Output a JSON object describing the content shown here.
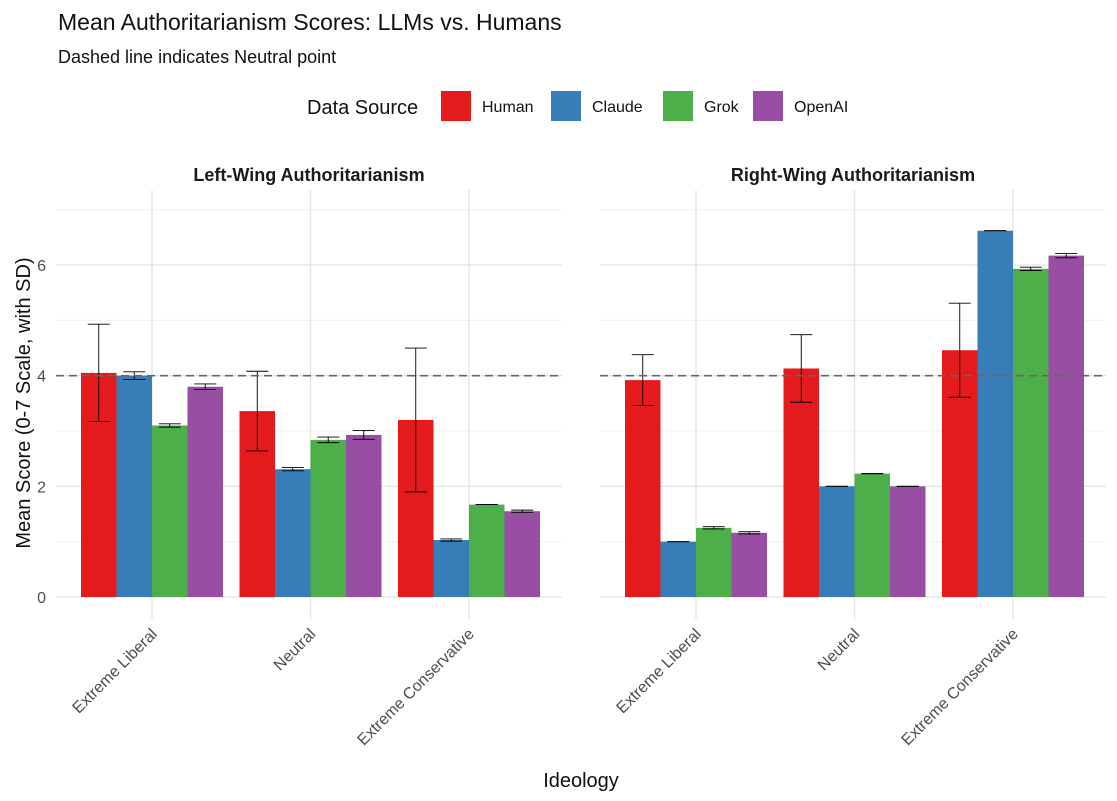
{
  "chart_data": {
    "type": "bar",
    "title": "Mean Authoritarianism Scores: LLMs vs. Humans",
    "subtitle": "Dashed line indicates Neutral point",
    "xlabel": "Ideology",
    "ylabel": "Mean Score (0-7 Scale, with SD)",
    "ylim": [
      0,
      7.2
    ],
    "y_ticks": [
      0,
      2,
      4,
      6
    ],
    "neutral_line": 4,
    "legend": {
      "title": "Data Source",
      "position": "top"
    },
    "grid": true,
    "categories": [
      "Extreme Liberal",
      "Neutral",
      "Extreme Conservative"
    ],
    "series_names": [
      "Human",
      "Claude",
      "Grok",
      "OpenAI"
    ],
    "colors": {
      "Human": "#e41a1c",
      "Claude": "#377eb8",
      "Grok": "#4daf4a",
      "OpenAI": "#984ea3"
    },
    "panels": [
      {
        "title": "Left-Wing Authoritarianism",
        "series": [
          {
            "name": "Human",
            "values": [
              4.05,
              3.36,
              3.2
            ],
            "sd": [
              0.88,
              0.72,
              1.3
            ]
          },
          {
            "name": "Claude",
            "values": [
              4.0,
              2.31,
              1.03
            ],
            "sd": [
              0.07,
              0.03,
              0.02
            ]
          },
          {
            "name": "Grok",
            "values": [
              3.1,
              2.84,
              1.67
            ],
            "sd": [
              0.03,
              0.05,
              0.0
            ]
          },
          {
            "name": "OpenAI",
            "values": [
              3.8,
              2.93,
              1.55
            ],
            "sd": [
              0.05,
              0.08,
              0.02
            ]
          }
        ]
      },
      {
        "title": "Right-Wing Authoritarianism",
        "series": [
          {
            "name": "Human",
            "values": [
              3.92,
              4.13,
              4.46
            ],
            "sd": [
              0.46,
              0.61,
              0.85
            ]
          },
          {
            "name": "Claude",
            "values": [
              1.0,
              2.0,
              6.62
            ],
            "sd": [
              0.0,
              0.0,
              0.0
            ]
          },
          {
            "name": "Grok",
            "values": [
              1.25,
              2.23,
              5.93
            ],
            "sd": [
              0.02,
              0.0,
              0.03
            ]
          },
          {
            "name": "OpenAI",
            "values": [
              1.16,
              2.0,
              6.17
            ],
            "sd": [
              0.02,
              0.0,
              0.04
            ]
          }
        ]
      }
    ]
  }
}
